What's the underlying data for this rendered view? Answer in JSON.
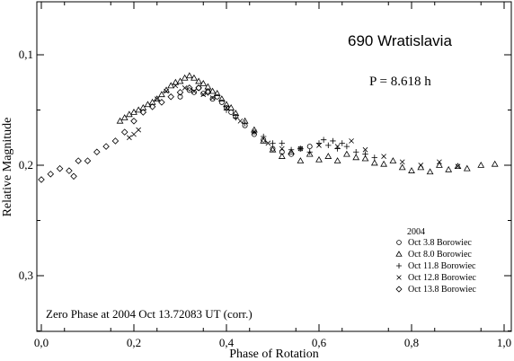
{
  "chart_data": {
    "type": "scatter",
    "title": "690 Wratislavia",
    "period_label": "P = 8.618 h",
    "xlabel": "Phase of Rotation",
    "ylabel": "Relative Magnitude",
    "xlim": [
      0.0,
      1.0
    ],
    "ylim": [
      0.3,
      0.1
    ],
    "y_inverted": true,
    "x_ticks": [
      "0,0",
      "0,2",
      "0,4",
      "0,6",
      "0,8",
      "1,0"
    ],
    "x_tick_values": [
      0.0,
      0.2,
      0.4,
      0.6,
      0.8,
      1.0
    ],
    "y_ticks": [
      "0,1",
      "0,2",
      "0,3"
    ],
    "y_tick_values": [
      0.1,
      0.2,
      0.3
    ],
    "legend_title": "2004",
    "legend_position": "lower-right",
    "annotation": "Zero Phase at 2004 Oct 13.72083 UT (corr.)",
    "grid": false,
    "series": [
      {
        "name": "Oct 3.8 Borowiec",
        "marker": "circle",
        "points": [
          [
            0.3,
            0.138
          ],
          [
            0.32,
            0.132
          ],
          [
            0.33,
            0.134
          ],
          [
            0.34,
            0.13
          ],
          [
            0.35,
            0.135
          ],
          [
            0.36,
            0.133
          ],
          [
            0.37,
            0.14
          ],
          [
            0.38,
            0.138
          ],
          [
            0.39,
            0.143
          ],
          [
            0.4,
            0.148
          ],
          [
            0.41,
            0.152
          ],
          [
            0.42,
            0.156
          ],
          [
            0.44,
            0.164
          ],
          [
            0.46,
            0.172
          ],
          [
            0.48,
            0.177
          ],
          [
            0.5,
            0.185
          ],
          [
            0.52,
            0.188
          ],
          [
            0.54,
            0.19
          ],
          [
            0.56,
            0.185
          ],
          [
            0.58,
            0.183
          ]
        ]
      },
      {
        "name": "Oct 8.0 Borowiec",
        "marker": "triangle",
        "points": [
          [
            0.17,
            0.16
          ],
          [
            0.18,
            0.157
          ],
          [
            0.19,
            0.154
          ],
          [
            0.2,
            0.152
          ],
          [
            0.21,
            0.15
          ],
          [
            0.22,
            0.148
          ],
          [
            0.23,
            0.145
          ],
          [
            0.24,
            0.143
          ],
          [
            0.25,
            0.14
          ],
          [
            0.26,
            0.136
          ],
          [
            0.27,
            0.132
          ],
          [
            0.28,
            0.128
          ],
          [
            0.29,
            0.125
          ],
          [
            0.3,
            0.124
          ],
          [
            0.31,
            0.121
          ],
          [
            0.32,
            0.119
          ],
          [
            0.33,
            0.121
          ],
          [
            0.34,
            0.124
          ],
          [
            0.35,
            0.126
          ],
          [
            0.36,
            0.129
          ],
          [
            0.37,
            0.133
          ],
          [
            0.38,
            0.135
          ],
          [
            0.39,
            0.14
          ],
          [
            0.4,
            0.145
          ],
          [
            0.41,
            0.148
          ],
          [
            0.42,
            0.153
          ],
          [
            0.44,
            0.16
          ],
          [
            0.46,
            0.168
          ],
          [
            0.48,
            0.178
          ],
          [
            0.5,
            0.186
          ],
          [
            0.52,
            0.192
          ],
          [
            0.54,
            0.188
          ],
          [
            0.56,
            0.196
          ],
          [
            0.58,
            0.19
          ],
          [
            0.6,
            0.195
          ],
          [
            0.62,
            0.192
          ],
          [
            0.64,
            0.196
          ],
          [
            0.66,
            0.19
          ],
          [
            0.68,
            0.193
          ],
          [
            0.7,
            0.194
          ],
          [
            0.72,
            0.198
          ],
          [
            0.74,
            0.199
          ],
          [
            0.76,
            0.196
          ],
          [
            0.78,
            0.202
          ],
          [
            0.8,
            0.205
          ],
          [
            0.82,
            0.202
          ],
          [
            0.84,
            0.206
          ],
          [
            0.86,
            0.2
          ],
          [
            0.88,
            0.204
          ],
          [
            0.9,
            0.201
          ],
          [
            0.92,
            0.203
          ],
          [
            0.95,
            0.2
          ],
          [
            0.98,
            0.199
          ]
        ]
      },
      {
        "name": "Oct 11.8 Borowiec",
        "marker": "plus",
        "points": [
          [
            0.4,
            0.15
          ],
          [
            0.42,
            0.157
          ],
          [
            0.44,
            0.162
          ],
          [
            0.46,
            0.17
          ],
          [
            0.48,
            0.174
          ],
          [
            0.5,
            0.18
          ],
          [
            0.52,
            0.18
          ],
          [
            0.54,
            0.186
          ],
          [
            0.56,
            0.185
          ],
          [
            0.58,
            0.188
          ],
          [
            0.6,
            0.18
          ],
          [
            0.61,
            0.177
          ],
          [
            0.62,
            0.182
          ],
          [
            0.63,
            0.178
          ],
          [
            0.64,
            0.185
          ],
          [
            0.65,
            0.18
          ],
          [
            0.66,
            0.183
          ],
          [
            0.68,
            0.188
          ],
          [
            0.7,
            0.19
          ],
          [
            0.72,
            0.193
          ]
        ]
      },
      {
        "name": "Oct 12.8 Borowiec",
        "marker": "cross",
        "points": [
          [
            0.19,
            0.175
          ],
          [
            0.2,
            0.172
          ],
          [
            0.21,
            0.168
          ],
          [
            0.25,
            0.14
          ],
          [
            0.27,
            0.133
          ],
          [
            0.29,
            0.128
          ],
          [
            0.31,
            0.13
          ],
          [
            0.33,
            0.133
          ],
          [
            0.35,
            0.136
          ],
          [
            0.37,
            0.139
          ],
          [
            0.4,
            0.148
          ],
          [
            0.43,
            0.16
          ],
          [
            0.46,
            0.17
          ],
          [
            0.49,
            0.18
          ],
          [
            0.52,
            0.185
          ],
          [
            0.56,
            0.185
          ],
          [
            0.6,
            0.182
          ],
          [
            0.64,
            0.183
          ],
          [
            0.67,
            0.178
          ],
          [
            0.7,
            0.186
          ],
          [
            0.74,
            0.192
          ],
          [
            0.78,
            0.197
          ],
          [
            0.82,
            0.2
          ],
          [
            0.86,
            0.197
          ],
          [
            0.9,
            0.201
          ]
        ]
      },
      {
        "name": "Oct 13.8 Borowiec",
        "marker": "diamond",
        "points": [
          [
            0.0,
            0.213
          ],
          [
            0.02,
            0.208
          ],
          [
            0.04,
            0.203
          ],
          [
            0.06,
            0.205
          ],
          [
            0.07,
            0.21
          ],
          [
            0.08,
            0.196
          ],
          [
            0.1,
            0.196
          ],
          [
            0.12,
            0.188
          ],
          [
            0.14,
            0.183
          ],
          [
            0.16,
            0.178
          ],
          [
            0.18,
            0.17
          ],
          [
            0.2,
            0.16
          ],
          [
            0.22,
            0.152
          ],
          [
            0.24,
            0.147
          ],
          [
            0.26,
            0.143
          ],
          [
            0.28,
            0.138
          ],
          [
            0.3,
            0.134
          ],
          [
            0.32,
            0.13
          ],
          [
            0.34,
            0.13
          ],
          [
            0.36,
            0.134
          ]
        ]
      }
    ]
  }
}
